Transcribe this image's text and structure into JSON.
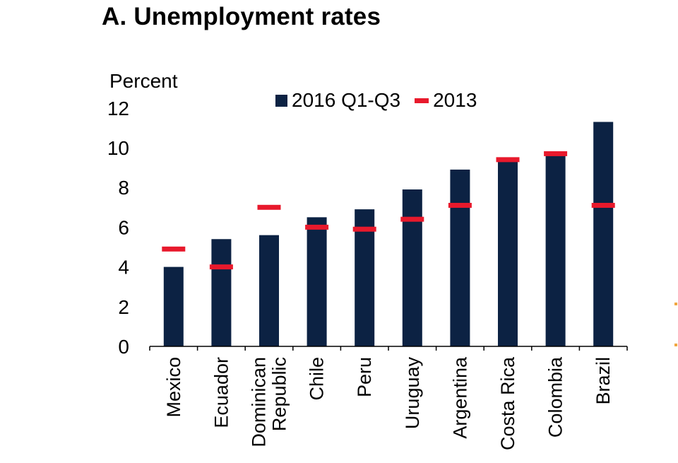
{
  "colors": {
    "bar": "#0c2243",
    "marker": "#e8192c",
    "axis": "#000000",
    "edge_accent": "#f0a640"
  },
  "chart_data": {
    "type": "bar",
    "title": "A. Unemployment rates",
    "ylabel": "Percent",
    "xlabel": "",
    "ylim": [
      0,
      12
    ],
    "yticks": [
      0,
      2,
      4,
      6,
      8,
      10,
      12
    ],
    "grid": false,
    "legend_position": "top",
    "categories": [
      "Mexico",
      "Ecuador",
      "Dominican Republic",
      "Chile",
      "Peru",
      "Uruguay",
      "Argentina",
      "Costa Rica",
      "Colombia",
      "Brazil"
    ],
    "category_lines": [
      [
        "Mexico"
      ],
      [
        "Ecuador"
      ],
      [
        "Dominican",
        "Republic"
      ],
      [
        "Chile"
      ],
      [
        "Peru"
      ],
      [
        "Uruguay"
      ],
      [
        "Argentina"
      ],
      [
        "Costa Rica"
      ],
      [
        "Colombia"
      ],
      [
        "Brazil"
      ]
    ],
    "series": [
      {
        "name": "2016 Q1-Q3",
        "kind": "bar",
        "values": [
          4.0,
          5.4,
          5.6,
          6.5,
          6.9,
          7.9,
          8.9,
          9.4,
          9.7,
          11.3
        ]
      },
      {
        "name": "2013",
        "kind": "marker",
        "values": [
          4.9,
          4.0,
          7.0,
          6.0,
          5.9,
          6.4,
          7.1,
          9.4,
          9.7,
          7.1
        ]
      }
    ]
  }
}
